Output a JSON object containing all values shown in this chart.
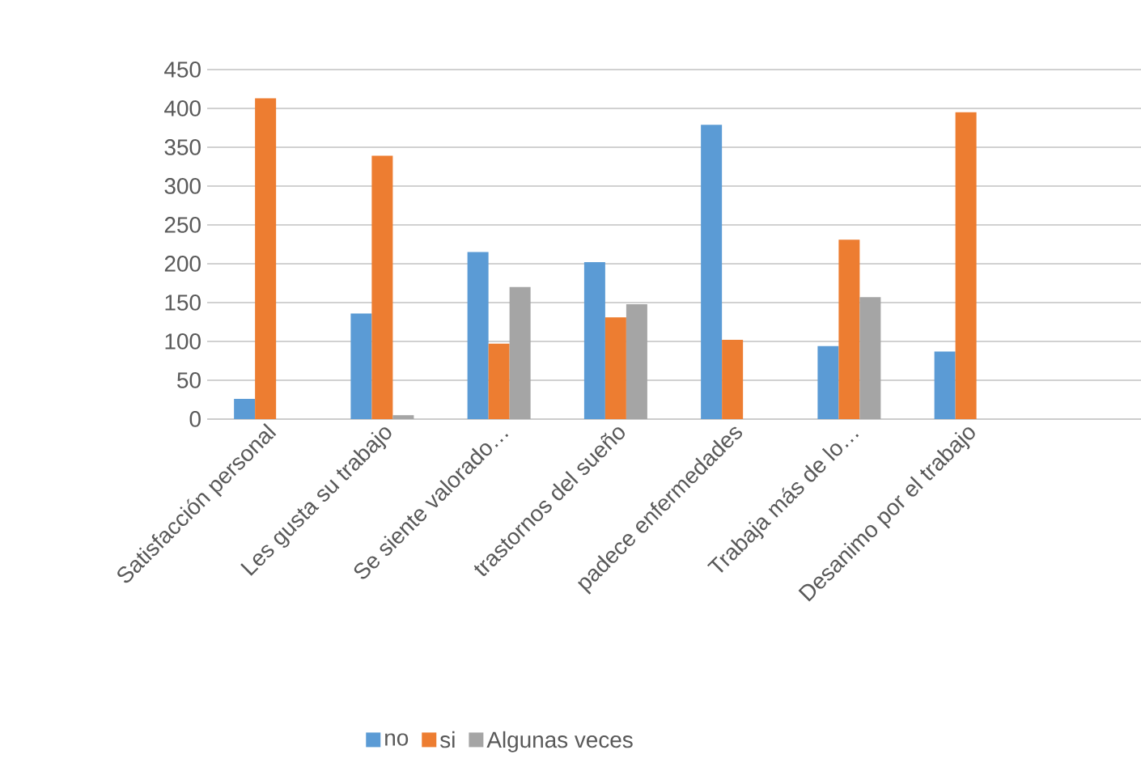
{
  "chart_data": {
    "type": "bar",
    "categories": [
      "Satisfacción personal",
      "Les gusta su trabajo",
      "Se siente valorado…",
      "trastornos del sueño",
      "padece enfermedades",
      "Trabaja más de lo…",
      "Desanimo por el trabajo",
      null
    ],
    "series": [
      {
        "name": "no",
        "color": "#5b9bd5",
        "values": [
          26,
          136,
          215,
          202,
          379,
          94,
          87,
          null
        ]
      },
      {
        "name": "si",
        "color": "#ed7d31",
        "values": [
          413,
          339,
          97,
          131,
          102,
          231,
          395,
          null
        ]
      },
      {
        "name": "Algunas veces",
        "color": "#a5a5a5",
        "values": [
          null,
          5,
          170,
          148,
          null,
          157,
          null,
          null
        ]
      }
    ],
    "ylim": [
      0,
      450
    ],
    "yticks": [
      0,
      50,
      100,
      150,
      200,
      250,
      300,
      350,
      400,
      450
    ],
    "grid": "y",
    "legend": "bottom"
  }
}
